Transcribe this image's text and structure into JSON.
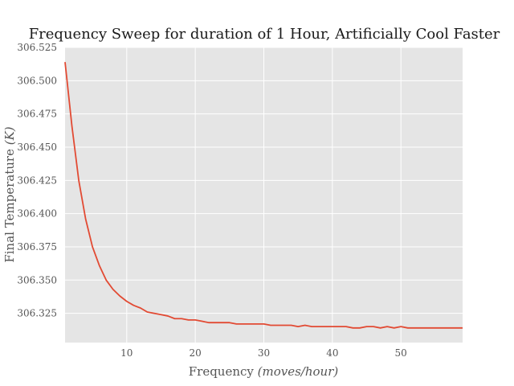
{
  "chart_data": {
    "type": "line",
    "title": "Frequency Sweep for duration of 1 Hour, Artificially Cool Faster",
    "xlabel": "Frequency ",
    "xlabel_unit": "(moves/hour)",
    "ylabel": "Final Temperature ",
    "ylabel_unit": "(K)",
    "xlim": [
      1,
      59
    ],
    "ylim": [
      306.303,
      306.525
    ],
    "xticks": [
      10,
      20,
      30,
      40,
      50
    ],
    "yticks": [
      306.325,
      306.35,
      306.375,
      306.4,
      306.425,
      306.45,
      306.475,
      306.5,
      306.525
    ],
    "ytick_labels": [
      "306.325",
      "306.350",
      "306.375",
      "306.400",
      "306.425",
      "306.450",
      "306.475",
      "306.500",
      "306.525"
    ],
    "grid": true,
    "series": [
      {
        "color": "#E24A33",
        "x": [
          1,
          2,
          3,
          4,
          5,
          6,
          7,
          8,
          9,
          10,
          11,
          12,
          13,
          14,
          15,
          16,
          17,
          18,
          19,
          20,
          21,
          22,
          23,
          24,
          25,
          26,
          27,
          28,
          29,
          30,
          31,
          32,
          33,
          34,
          35,
          36,
          37,
          38,
          39,
          40,
          41,
          42,
          43,
          44,
          45,
          46,
          47,
          48,
          49,
          50,
          51,
          52,
          53,
          54,
          55,
          56,
          57,
          58,
          59
        ],
        "y": [
          306.514,
          306.466,
          306.425,
          306.396,
          306.375,
          306.361,
          306.35,
          306.343,
          306.338,
          306.334,
          306.331,
          306.329,
          306.326,
          306.325,
          306.324,
          306.323,
          306.321,
          306.321,
          306.32,
          306.32,
          306.319,
          306.318,
          306.318,
          306.318,
          306.318,
          306.317,
          306.317,
          306.317,
          306.317,
          306.317,
          306.316,
          306.316,
          306.316,
          306.316,
          306.315,
          306.316,
          306.315,
          306.315,
          306.315,
          306.315,
          306.315,
          306.315,
          306.314,
          306.314,
          306.315,
          306.315,
          306.314,
          306.315,
          306.314,
          306.315,
          306.314,
          306.314,
          306.314,
          306.314,
          306.314,
          306.314,
          306.314,
          306.314,
          306.314
        ]
      }
    ]
  }
}
